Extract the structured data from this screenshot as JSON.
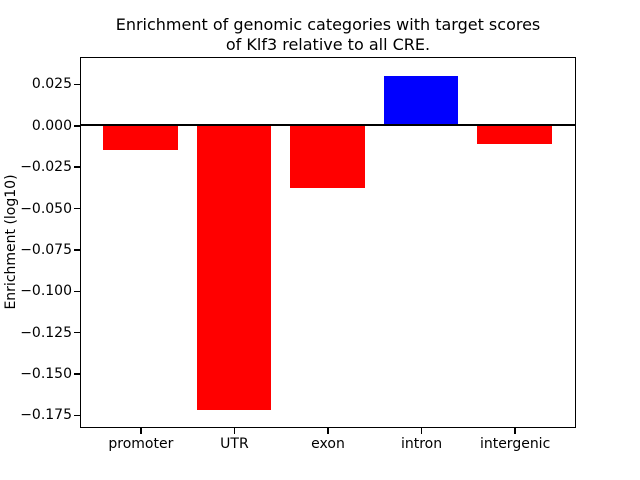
{
  "chart_data": {
    "type": "bar",
    "title_lines": [
      "Enrichment of genomic categories with target scores",
      "of Klf3 relative to all CRE."
    ],
    "title": "Enrichment of genomic categories with target scores\nof Klf3 relative to all CRE.",
    "xlabel": "",
    "ylabel": "Enrichment (log10)",
    "categories": [
      "promoter",
      "UTR",
      "exon",
      "intron",
      "intergenic"
    ],
    "values": [
      -0.015,
      -0.172,
      -0.038,
      0.03,
      -0.011
    ],
    "bar_colors": [
      "#ff0000",
      "#ff0000",
      "#ff0000",
      "#0000ff",
      "#ff0000"
    ],
    "negative_color": "#ff0000",
    "positive_color": "#0000ff",
    "ylim": [
      -0.182,
      0.041
    ],
    "yticks": [
      0.025,
      0.0,
      -0.025,
      -0.05,
      -0.075,
      -0.1,
      -0.125,
      -0.15,
      -0.175
    ],
    "ytick_decimals": 3,
    "bar_width_fraction": 0.8,
    "zero_line": true,
    "grid": false,
    "legend": false,
    "frame_color": "#000000",
    "background_color": "#ffffff"
  }
}
